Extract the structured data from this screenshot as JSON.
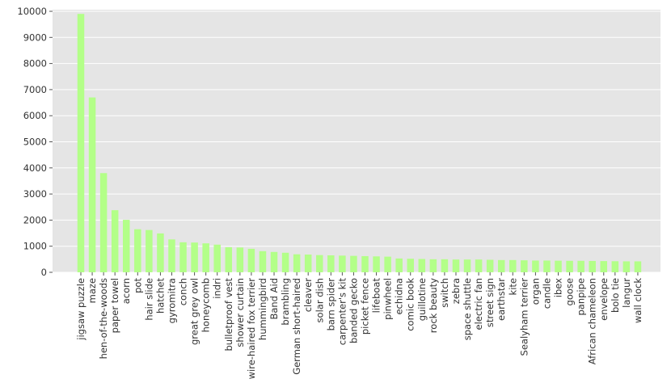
{
  "chart_data": {
    "type": "bar",
    "title": "",
    "xlabel": "",
    "ylabel": "",
    "ylim": [
      0,
      10000
    ],
    "yticks": [
      0,
      1000,
      2000,
      3000,
      4000,
      5000,
      6000,
      7000,
      8000,
      9000,
      10000
    ],
    "grid": true,
    "bar_color": "#b3ff88",
    "background_color": "#e5e5e5",
    "grid_color": "#ffffff",
    "categories": [
      "jigsaw puzzle",
      "maze",
      "hen-of-the-woods",
      "paper towel",
      "acorn",
      "pot",
      "hair slide",
      "hatchet",
      "gyromitra",
      "conch",
      "great grey owl",
      "honeycomb",
      "indri",
      "bulletproof vest",
      "shower curtain",
      "wire-haired fox terrier",
      "hummingbird",
      "Band Aid",
      "brambling",
      "German short-haired",
      "cleaver",
      "solar dish",
      "barn spider",
      "carpenter's kit",
      "banded gecko",
      "picket fence",
      "lifeboat",
      "pinwheel",
      "echidna",
      "comic book",
      "guillotine",
      "rock beauty",
      "switch",
      "zebra",
      "space shuttle",
      "electric fan",
      "street sign",
      "earthstar",
      "kite",
      "Sealyham terrier",
      "organ",
      "candle",
      "ibex",
      "goose",
      "panpipe",
      "African chameleon",
      "envelope",
      "bolo tie",
      "langur",
      "wall clock"
    ],
    "values": [
      9900,
      6700,
      3800,
      2380,
      2010,
      1650,
      1620,
      1490,
      1260,
      1150,
      1140,
      1110,
      1060,
      960,
      950,
      900,
      810,
      780,
      750,
      690,
      680,
      660,
      650,
      640,
      630,
      620,
      610,
      600,
      530,
      520,
      510,
      500,
      500,
      490,
      490,
      490,
      480,
      470,
      470,
      460,
      450,
      450,
      445,
      440,
      440,
      435,
      430,
      425,
      420,
      420
    ]
  }
}
